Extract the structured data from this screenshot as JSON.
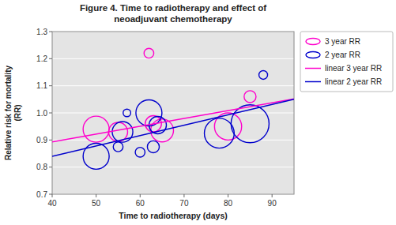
{
  "chart_data": {
    "type": "scatter",
    "title": "Figure 4. Time to radiotherapy and effect of\nneoadjuvant chemotherapy",
    "x_label": "Time to radiotherapy (days)",
    "y_label": "Relative risk for mortality\n(RR)",
    "xlim": [
      40,
      95
    ],
    "ylim": [
      0.7,
      1.3
    ],
    "xticks": [
      40,
      50,
      60,
      70,
      80,
      90
    ],
    "yticks": [
      0.7,
      0.8,
      0.9,
      {
        "value": 1.0,
        "label": "1.0"
      },
      1.1,
      1.2,
      1.3
    ],
    "grid": true,
    "legend": "right",
    "series": [
      {
        "name": "3 year RR",
        "type": "scatter",
        "marker": "circle",
        "color": "#ff00cc",
        "x": [
          50,
          55,
          62,
          63,
          65,
          80,
          85
        ],
        "values": [
          0.94,
          0.93,
          1.22,
          0.96,
          0.935,
          0.95,
          1.06
        ],
        "radius": [
          0.048,
          0.035,
          0.018,
          0.03,
          0.042,
          0.05,
          0.022
        ]
      },
      {
        "name": "2 year RR",
        "type": "scatter",
        "marker": "circle",
        "color": "#0000cc",
        "x": [
          50,
          55,
          56,
          57,
          60,
          62,
          63,
          64,
          78,
          85,
          88
        ],
        "values": [
          0.84,
          0.875,
          0.93,
          1.0,
          0.855,
          1.0,
          0.875,
          0.955,
          0.925,
          0.96,
          1.14
        ],
        "radius": [
          0.048,
          0.018,
          0.038,
          0.014,
          0.018,
          0.048,
          0.022,
          0.032,
          0.055,
          0.07,
          0.016
        ]
      },
      {
        "name": "linear 3 year RR",
        "type": "line",
        "color": "#ff00cc",
        "x": [
          40,
          95
        ],
        "values": [
          0.893,
          1.052
        ]
      },
      {
        "name": "linear 2 year RR",
        "type": "line",
        "color": "#0000cc",
        "x": [
          40,
          95
        ],
        "values": [
          0.84,
          1.05
        ]
      }
    ]
  }
}
